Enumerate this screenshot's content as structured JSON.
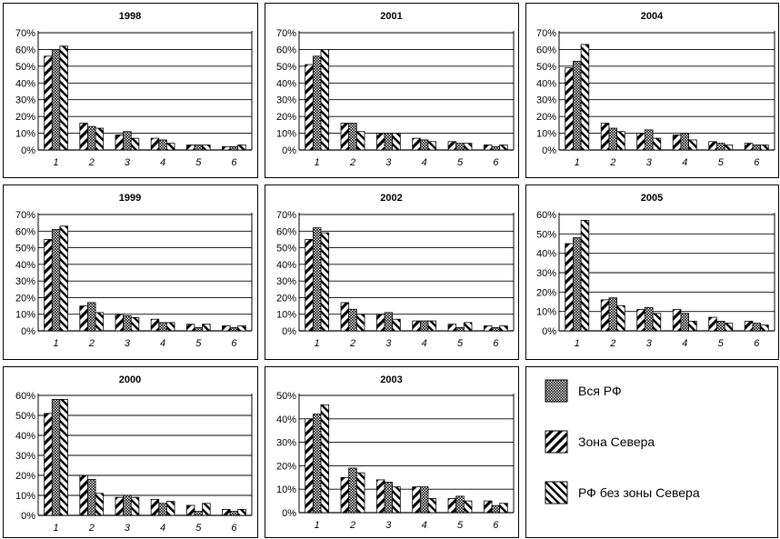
{
  "chart_data": [
    {
      "type": "bar",
      "title": "1998",
      "categories": [
        "1",
        "2",
        "3",
        "4",
        "5",
        "6"
      ],
      "ylim": [
        0,
        70
      ],
      "yticks": [
        "0%",
        "10%",
        "20%",
        "30%",
        "40%",
        "50%",
        "60%",
        "70%"
      ],
      "series": [
        {
          "values": [
            56,
            16,
            9,
            7,
            3,
            2
          ]
        },
        {
          "values": [
            60,
            14,
            11,
            6,
            3,
            2
          ]
        },
        {
          "values": [
            62,
            13,
            7,
            4,
            3,
            3
          ]
        }
      ]
    },
    {
      "type": "bar",
      "title": "2001",
      "categories": [
        "1",
        "2",
        "3",
        "4",
        "5",
        "6"
      ],
      "ylim": [
        0,
        70
      ],
      "yticks": [
        "0%",
        "10%",
        "20%",
        "30%",
        "40%",
        "50%",
        "60%",
        "70%"
      ],
      "series": [
        {
          "values": [
            51,
            16,
            10,
            7,
            5,
            3
          ]
        },
        {
          "values": [
            56,
            16,
            10,
            6,
            4,
            2
          ]
        },
        {
          "values": [
            60,
            11,
            10,
            5,
            4,
            3
          ]
        }
      ]
    },
    {
      "type": "bar",
      "title": "2004",
      "categories": [
        "1",
        "2",
        "3",
        "4",
        "5",
        "6"
      ],
      "ylim": [
        0,
        70
      ],
      "yticks": [
        "0%",
        "10%",
        "20%",
        "30%",
        "40%",
        "50%",
        "60%",
        "70%"
      ],
      "series": [
        {
          "values": [
            49,
            16,
            10,
            9,
            5,
            4
          ]
        },
        {
          "values": [
            53,
            13,
            12,
            10,
            4,
            3
          ]
        },
        {
          "values": [
            63,
            11,
            7,
            6,
            3,
            3
          ]
        }
      ]
    },
    {
      "type": "bar",
      "title": "1999",
      "categories": [
        "1",
        "2",
        "3",
        "4",
        "5",
        "6"
      ],
      "ylim": [
        0,
        70
      ],
      "yticks": [
        "0%",
        "10%",
        "20%",
        "30%",
        "40%",
        "50%",
        "60%",
        "70%"
      ],
      "series": [
        {
          "values": [
            55,
            15,
            10,
            7,
            4,
            3
          ]
        },
        {
          "values": [
            61,
            17,
            9,
            5,
            2,
            2
          ]
        },
        {
          "values": [
            63,
            11,
            8,
            5,
            4,
            3
          ]
        }
      ]
    },
    {
      "type": "bar",
      "title": "2002",
      "categories": [
        "1",
        "2",
        "3",
        "4",
        "5",
        "6"
      ],
      "ylim": [
        0,
        70
      ],
      "yticks": [
        "0%",
        "10%",
        "20%",
        "30%",
        "40%",
        "50%",
        "60%",
        "70%"
      ],
      "series": [
        {
          "values": [
            55,
            17,
            10,
            6,
            4,
            3
          ]
        },
        {
          "values": [
            62,
            13,
            11,
            6,
            2,
            2
          ]
        },
        {
          "values": [
            59,
            10,
            7,
            6,
            5,
            3
          ]
        }
      ]
    },
    {
      "type": "bar",
      "title": "2005",
      "categories": [
        "1",
        "2",
        "3",
        "4",
        "5",
        "6"
      ],
      "ylim": [
        0,
        60
      ],
      "yticks": [
        "0%",
        "10%",
        "20%",
        "30%",
        "40%",
        "50%",
        "60%"
      ],
      "series": [
        {
          "values": [
            45,
            16,
            11,
            11,
            7,
            5
          ]
        },
        {
          "values": [
            48,
            17,
            12,
            9,
            5,
            4
          ]
        },
        {
          "values": [
            57,
            13,
            9,
            5,
            4,
            3
          ]
        }
      ]
    },
    {
      "type": "bar",
      "title": "2000",
      "categories": [
        "1",
        "2",
        "3",
        "4",
        "5",
        "6"
      ],
      "ylim": [
        0,
        60
      ],
      "yticks": [
        "0%",
        "10%",
        "20%",
        "30%",
        "40%",
        "50%",
        "60%"
      ],
      "series": [
        {
          "values": [
            51,
            20,
            9,
            8,
            5,
            3
          ]
        },
        {
          "values": [
            58,
            18,
            10,
            6,
            2,
            2
          ]
        },
        {
          "values": [
            58,
            11,
            9,
            7,
            6,
            3
          ]
        }
      ]
    },
    {
      "type": "bar",
      "title": "2003",
      "categories": [
        "1",
        "2",
        "3",
        "4",
        "5",
        "6"
      ],
      "ylim": [
        0,
        50
      ],
      "yticks": [
        "0%",
        "10%",
        "20%",
        "30%",
        "40%",
        "50%"
      ],
      "series": [
        {
          "values": [
            40,
            15,
            14,
            11,
            6,
            5
          ]
        },
        {
          "values": [
            42,
            19,
            13,
            11,
            7,
            3
          ]
        },
        {
          "values": [
            46,
            17,
            11,
            6,
            5,
            4
          ]
        }
      ]
    }
  ],
  "legend": {
    "items": [
      {
        "label": "Вся РФ",
        "pattern": "dots"
      },
      {
        "label": "Зона Севера",
        "pattern": "hatch-wide"
      },
      {
        "label": "РФ без зоны Севера",
        "pattern": "hatch-narrow"
      }
    ]
  },
  "colors": {
    "ink": "#000000",
    "grid": "#000000",
    "background": "#ffffff"
  }
}
